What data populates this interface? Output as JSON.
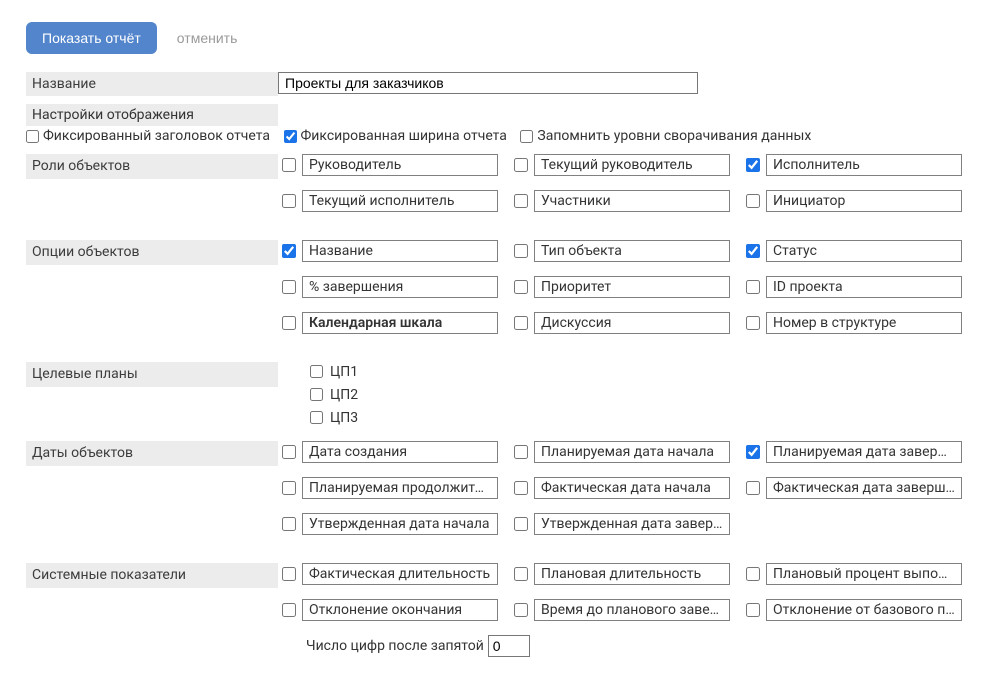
{
  "actions": {
    "show_report": "Показать отчёт",
    "cancel": "отменить"
  },
  "name_section": {
    "label": "Название",
    "value": "Проекты для заказчиков"
  },
  "display_settings": {
    "header": "Настройки отображения",
    "fixed_header": {
      "label": "Фиксированный заголовок отчета",
      "checked": false
    },
    "fixed_width": {
      "label": "Фиксированная ширина отчета",
      "checked": true
    },
    "remember_collapse": {
      "label": "Запомнить уровни сворачивания данных",
      "checked": false
    }
  },
  "roles": {
    "label": "Роли объектов",
    "items": [
      {
        "label": "Руководитель",
        "checked": false
      },
      {
        "label": "Текущий руководитель",
        "checked": false
      },
      {
        "label": "Исполнитель",
        "checked": true
      },
      {
        "label": "Текущий исполнитель",
        "checked": false
      },
      {
        "label": "Участники",
        "checked": false
      },
      {
        "label": "Инициатор",
        "checked": false
      }
    ]
  },
  "options": {
    "label": "Опции объектов",
    "items": [
      {
        "label": "Название",
        "checked": true,
        "bold": false
      },
      {
        "label": "Тип объекта",
        "checked": false,
        "bold": false
      },
      {
        "label": "Статус",
        "checked": true,
        "bold": false
      },
      {
        "label": "% завершения",
        "checked": false,
        "bold": false
      },
      {
        "label": "Приоритет",
        "checked": false,
        "bold": false
      },
      {
        "label": "ID проекта",
        "checked": false,
        "bold": false
      },
      {
        "label": "Календарная  шкала",
        "checked": false,
        "bold": true
      },
      {
        "label": "Дискуссия",
        "checked": false,
        "bold": false
      },
      {
        "label": "Номер в структуре",
        "checked": false,
        "bold": false
      }
    ]
  },
  "target_plans": {
    "label": "Целевые планы",
    "items": [
      {
        "label": "ЦП1",
        "checked": false
      },
      {
        "label": "ЦП2",
        "checked": false
      },
      {
        "label": "ЦП3",
        "checked": false
      }
    ]
  },
  "dates": {
    "label": "Даты объектов",
    "items": [
      {
        "label": "Дата создания",
        "checked": false
      },
      {
        "label": "Планируемая дата начала",
        "checked": false
      },
      {
        "label": "Планируемая дата заверш…",
        "checked": true
      },
      {
        "label": "Планируемая продолжительн…",
        "checked": false
      },
      {
        "label": "Фактическая дата начала",
        "checked": false
      },
      {
        "label": "Фактическая дата завершения",
        "checked": false
      },
      {
        "label": "Утвержденная дата начала",
        "checked": false
      },
      {
        "label": "Утвержденная дата заверше…",
        "checked": false
      }
    ]
  },
  "system": {
    "label": "Системные показатели",
    "items": [
      {
        "label": "Фактическая длительность",
        "checked": false
      },
      {
        "label": "Плановая длительность",
        "checked": false
      },
      {
        "label": "Плановый процент выполнен…",
        "checked": false
      },
      {
        "label": "Отклонение окончания",
        "checked": false
      },
      {
        "label": "Время до планового заверше…",
        "checked": false
      },
      {
        "label": "Отклонение от базового плана",
        "checked": false
      }
    ],
    "decimals_label": "Число цифр после запятой",
    "decimals_value": "0"
  },
  "style": {
    "primary_btn_bg": "#5285cc",
    "primary_btn_fg": "#ffffff",
    "section_bg": "#ececec",
    "border_color": "#808080",
    "checkbox_accent": "#1a73e8",
    "text_color": "#333333",
    "muted_text": "#9a9a9a"
  }
}
